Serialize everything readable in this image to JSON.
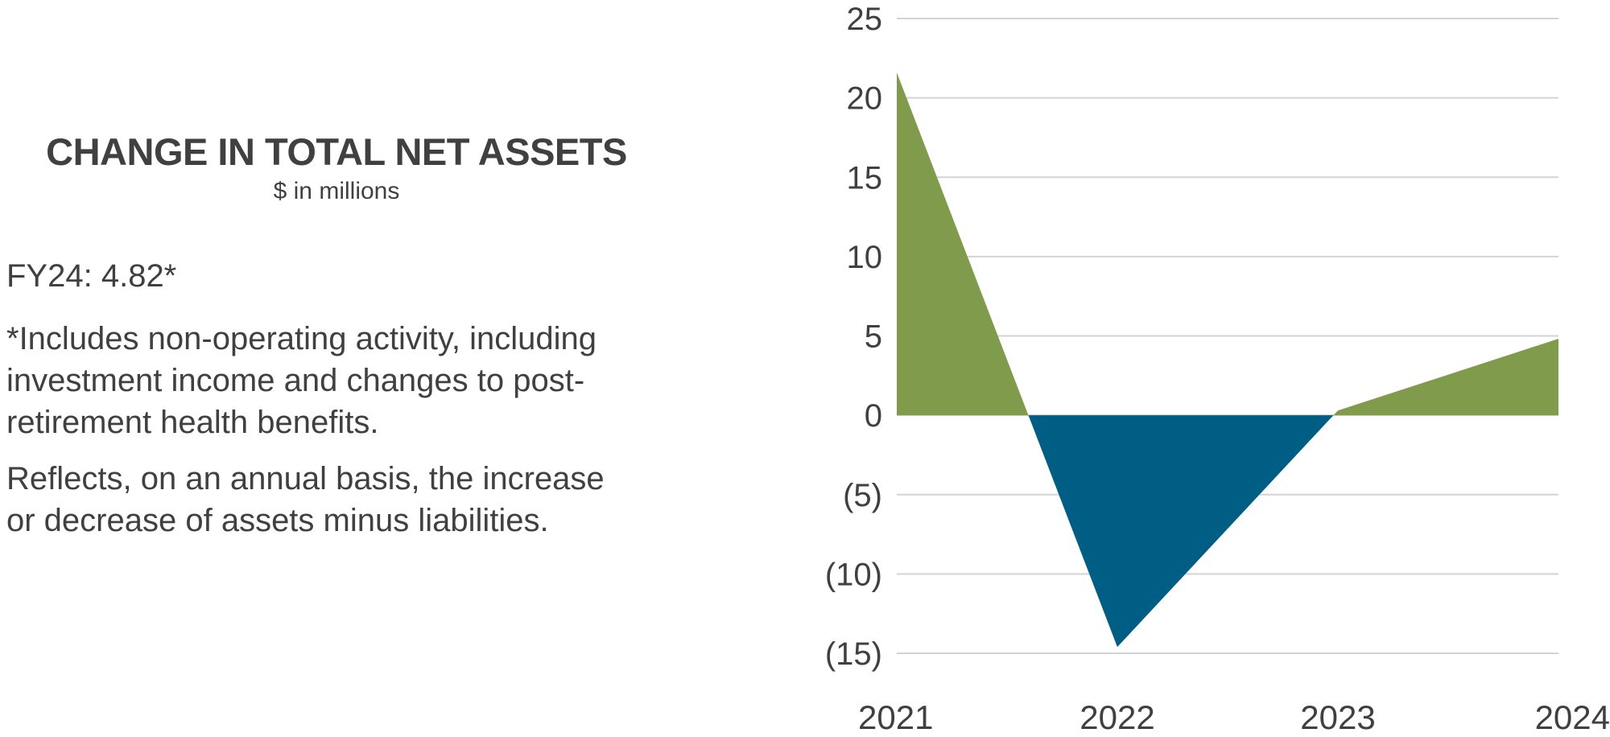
{
  "text": {
    "fy24": "FY24: 4.82*",
    "note": "*Includes non-operating activity, including investment income and changes to post-retirement health benefits.",
    "description": "Reflects, on an annual basis, the increase or decrease of assets minus liabilities."
  },
  "chart_data": {
    "type": "area",
    "title": "CHANGE IN TOTAL NET ASSETS",
    "subtitle": "$ in millions",
    "categories": [
      "2021",
      "2022",
      "2023",
      "2024"
    ],
    "values": [
      21.6,
      -14.6,
      0.3,
      4.82
    ],
    "ylim": [
      -15,
      25
    ],
    "yticks": [
      25,
      20,
      15,
      10,
      5,
      0,
      -5,
      -10,
      -15
    ],
    "ytick_labels": [
      "25",
      "20",
      "15",
      "10",
      "5",
      "0",
      "(5)",
      "(10)",
      "(15)"
    ],
    "grid": true,
    "colors": {
      "positive": "#7f9b4b",
      "negative": "#005e84",
      "grid": "#d3d3d3",
      "text": "#404040"
    }
  }
}
